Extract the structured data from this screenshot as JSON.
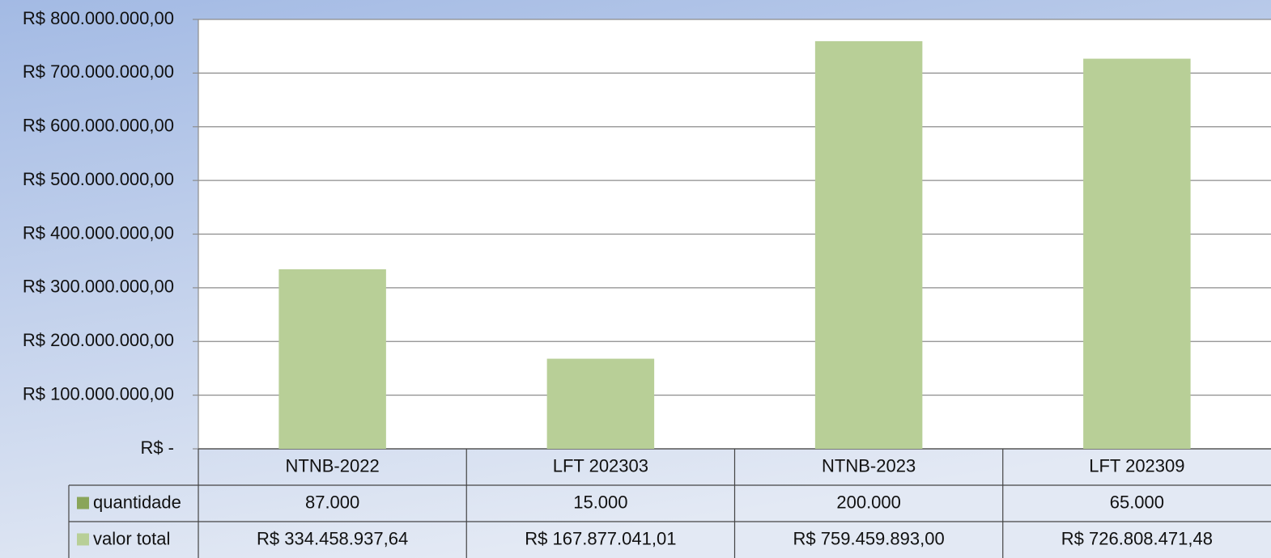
{
  "chart_data": {
    "type": "bar",
    "categories": [
      "NTNB-2022",
      "LFT 202303",
      "NTNB-2023",
      "LFT 202309"
    ],
    "series": [
      {
        "name": "quantidade",
        "color": "#8aa55a",
        "values": [
          87000,
          15000,
          200000,
          65000
        ],
        "value_labels": [
          "87.000",
          "15.000",
          "200.000",
          "65.000"
        ]
      },
      {
        "name": "valor total",
        "color": "#b8cf97",
        "values": [
          334458937.64,
          167877041.01,
          759459893.0,
          726808471.48
        ],
        "value_labels": [
          "R$ 334.458.937,64",
          "R$ 167.877.041,01",
          "R$ 759.459.893,00",
          "R$ 726.808.471,48"
        ]
      }
    ],
    "ylim": [
      0,
      800000000
    ],
    "yticks": [
      {
        "value": 0,
        "label": "R$ -"
      },
      {
        "value": 100000000,
        "label": "R$ 100.000.000,00"
      },
      {
        "value": 200000000,
        "label": "R$ 200.000.000,00"
      },
      {
        "value": 300000000,
        "label": "R$ 300.000.000,00"
      },
      {
        "value": 400000000,
        "label": "R$ 400.000.000,00"
      },
      {
        "value": 500000000,
        "label": "R$ 500.000.000,00"
      },
      {
        "value": 600000000,
        "label": "R$ 600.000.000,00"
      },
      {
        "value": 700000000,
        "label": "R$ 700.000.000,00"
      },
      {
        "value": 800000000,
        "label": "R$ 800.000.000,00"
      }
    ],
    "grid": true
  }
}
